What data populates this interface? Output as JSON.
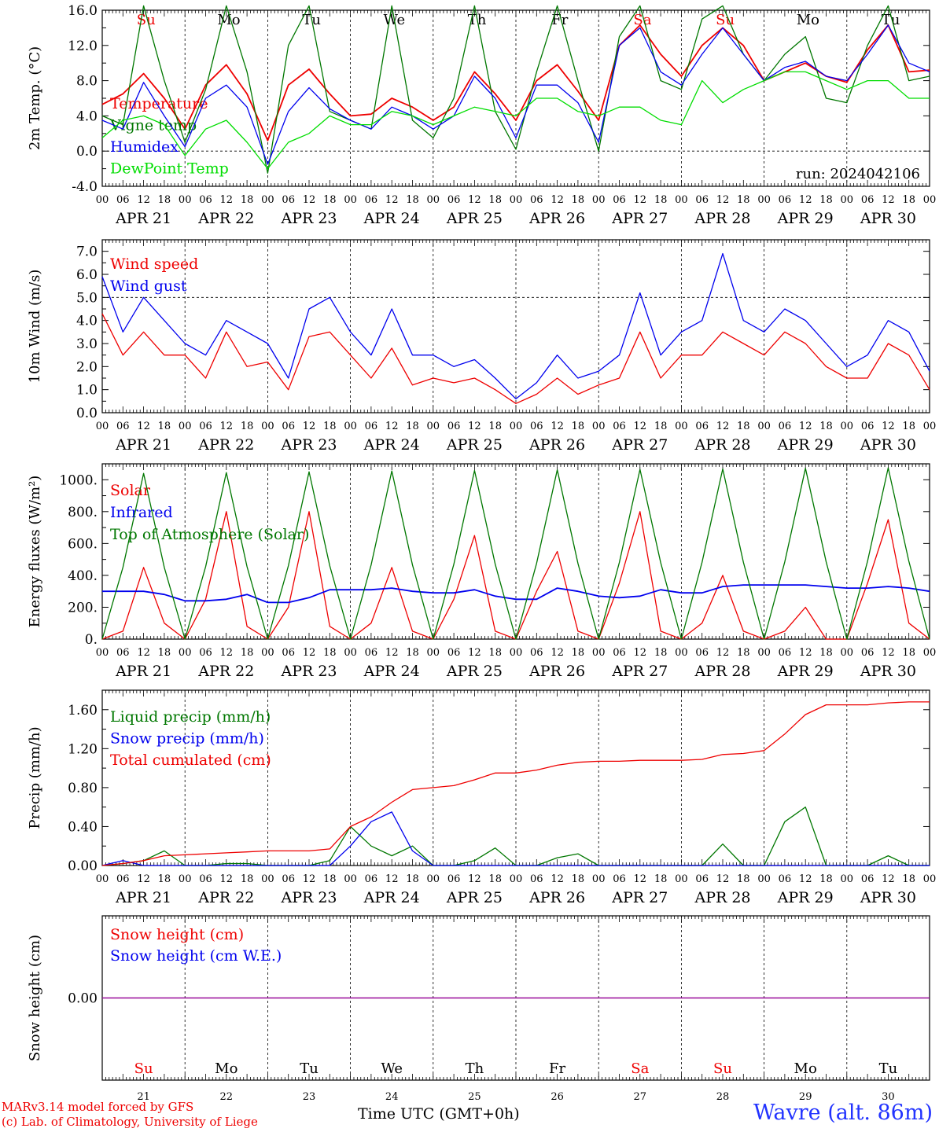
{
  "footer": {
    "model": "MARv3.14 model forced by GFS",
    "credit": "(c) Lab. of Climatology, University of Liege",
    "time_label": "Time UTC (GMT+0h)",
    "location": "Wavre (alt. 86m)"
  },
  "days": {
    "weekday_labels": [
      "Su",
      "Mo",
      "Tu",
      "We",
      "Th",
      "Fr",
      "Sa",
      "Su",
      "Mo",
      "Tu"
    ],
    "weekend_flags": [
      true,
      false,
      false,
      false,
      false,
      false,
      true,
      true,
      false,
      false
    ],
    "date_labels": [
      "APR 21",
      "APR 22",
      "APR 23",
      "APR 24",
      "APR 25",
      "APR 26",
      "APR 27",
      "APR 28",
      "APR 29",
      "APR 30"
    ],
    "day_numbers": [
      "21",
      "22",
      "23",
      "24",
      "25",
      "26",
      "27",
      "28",
      "29",
      "30"
    ],
    "hour_ticks": [
      "00",
      "06",
      "12",
      "18"
    ],
    "end_tick": "00"
  },
  "colors": {
    "red": "#ee0000",
    "blue": "#0000ee",
    "green": "#007700",
    "lightgreen": "#00dd00",
    "purple": "#8800aa"
  },
  "chart_data": [
    {
      "type": "line",
      "ylabel": "2m Temp. (°C)",
      "ylim": [
        -4,
        16
      ],
      "yticks": [
        "-4.0",
        "0.0",
        "4.0",
        "8.0",
        "12.0",
        "16.0"
      ],
      "annotation": "run: 2024042106",
      "x_hours_from": "APR 21 00",
      "x_step_hours": 6,
      "series": [
        {
          "name": "Temperature",
          "color": "red",
          "values": [
            5.3,
            6.5,
            8.8,
            6.0,
            2.5,
            7.5,
            9.8,
            6.5,
            1.2,
            7.5,
            9.3,
            6.5,
            4.0,
            4.2,
            6.0,
            5.0,
            3.5,
            5.0,
            9.0,
            6.5,
            3.5,
            8.0,
            9.8,
            6.8,
            3.5,
            12.0,
            14.3,
            11.0,
            8.5,
            12.0,
            14.0,
            12.0,
            8.0,
            9.0,
            10.0,
            8.5,
            7.8,
            11.5,
            14.3,
            9.0,
            9.2
          ]
        },
        {
          "name": "Vigne temp",
          "color": "green",
          "values": [
            4.0,
            3.0,
            16.5,
            8.0,
            1.0,
            7.0,
            16.5,
            9.0,
            -2.5,
            12.0,
            16.5,
            4.5,
            3.5,
            2.5,
            16.5,
            3.5,
            1.5,
            6.0,
            16.5,
            4.5,
            0.2,
            9.0,
            16.5,
            8.0,
            0.0,
            13.0,
            16.5,
            8.0,
            7.0,
            15.0,
            16.5,
            11.0,
            8.0,
            11.0,
            13.0,
            6.0,
            5.5,
            12.0,
            16.5,
            8.0,
            8.5
          ]
        },
        {
          "name": "Humidex",
          "color": "blue",
          "values": [
            3.5,
            2.5,
            7.8,
            4.0,
            0.5,
            6.0,
            7.5,
            5.0,
            -1.5,
            4.5,
            7.2,
            4.8,
            3.5,
            2.5,
            5.0,
            4.0,
            2.5,
            4.0,
            8.5,
            6.0,
            1.5,
            7.5,
            7.5,
            5.5,
            1.0,
            12.0,
            14.0,
            9.0,
            7.5,
            11.0,
            14.0,
            11.0,
            8.0,
            9.5,
            10.2,
            8.5,
            8.0,
            11.0,
            14.3,
            10.0,
            9.0
          ]
        },
        {
          "name": "DewPoint Temp",
          "color": "lightgreen",
          "values": [
            1.5,
            3.5,
            4.0,
            3.0,
            -0.5,
            2.5,
            3.5,
            1.0,
            -2.0,
            1.0,
            2.0,
            4.0,
            3.0,
            3.0,
            4.5,
            4.0,
            3.0,
            4.0,
            5.0,
            4.5,
            4.0,
            6.0,
            6.0,
            4.5,
            4.0,
            5.0,
            5.0,
            3.5,
            3.0,
            8.0,
            5.5,
            7.0,
            8.0,
            9.0,
            9.0,
            8.0,
            7.0,
            8.0,
            8.0,
            6.0,
            6.0
          ]
        }
      ]
    },
    {
      "type": "line",
      "ylabel": "10m Wind (m/s)",
      "ylim": [
        0,
        7.5
      ],
      "yticks": [
        "0.0",
        "1.0",
        "2.0",
        "3.0",
        "4.0",
        "5.0",
        "6.0",
        "7.0"
      ],
      "x_hours_from": "APR 21 00",
      "x_step_hours": 6,
      "series": [
        {
          "name": "Wind speed",
          "color": "red",
          "values": [
            4.3,
            2.5,
            3.5,
            2.5,
            2.5,
            1.5,
            3.5,
            2.0,
            2.2,
            1.0,
            3.3,
            3.5,
            2.5,
            1.5,
            2.8,
            1.2,
            1.5,
            1.3,
            1.5,
            1.0,
            0.4,
            0.8,
            1.5,
            0.8,
            1.2,
            1.5,
            3.5,
            1.5,
            2.5,
            2.5,
            3.5,
            3.0,
            2.5,
            3.5,
            3.0,
            2.0,
            1.5,
            1.5,
            3.0,
            2.5,
            1.0
          ]
        },
        {
          "name": "Wind gust",
          "color": "blue",
          "values": [
            5.9,
            3.5,
            5.0,
            4.0,
            3.0,
            2.5,
            4.0,
            3.5,
            3.0,
            1.5,
            4.5,
            5.0,
            3.5,
            2.5,
            4.5,
            2.5,
            2.5,
            2.0,
            2.3,
            1.5,
            0.6,
            1.3,
            2.5,
            1.5,
            1.8,
            2.5,
            5.2,
            2.5,
            3.5,
            4.0,
            6.9,
            4.0,
            3.5,
            4.5,
            4.0,
            3.0,
            2.0,
            2.5,
            4.0,
            3.5,
            1.8
          ]
        }
      ]
    },
    {
      "type": "line",
      "ylabel": "Energy fluxes (W/m²)",
      "ylim": [
        0,
        1100
      ],
      "yticks": [
        "0.",
        "200.",
        "400.",
        "600.",
        "800.",
        "1000."
      ],
      "x_hours_from": "APR 21 00",
      "x_step_hours": 6,
      "series": [
        {
          "name": "Solar",
          "color": "red",
          "values": [
            0,
            50,
            450,
            100,
            0,
            250,
            800,
            80,
            0,
            200,
            800,
            80,
            0,
            100,
            450,
            50,
            0,
            250,
            650,
            50,
            0,
            300,
            550,
            50,
            0,
            350,
            800,
            50,
            0,
            100,
            400,
            50,
            0,
            50,
            200,
            0,
            0,
            350,
            750,
            100,
            0
          ]
        },
        {
          "name": "Infrared",
          "color": "blue",
          "values": [
            300,
            300,
            300,
            280,
            240,
            240,
            250,
            280,
            230,
            230,
            260,
            310,
            310,
            310,
            320,
            300,
            290,
            290,
            310,
            270,
            250,
            250,
            320,
            300,
            270,
            260,
            270,
            310,
            290,
            290,
            330,
            340,
            340,
            340,
            340,
            330,
            320,
            320,
            330,
            320,
            300
          ]
        },
        {
          "name": "Top of Atmosphere (Solar)",
          "color": "green",
          "values": [
            0,
            450,
            1040,
            450,
            0,
            455,
            1045,
            455,
            0,
            460,
            1050,
            460,
            0,
            465,
            1055,
            465,
            0,
            470,
            1058,
            470,
            0,
            475,
            1062,
            475,
            0,
            480,
            1065,
            480,
            0,
            482,
            1068,
            482,
            0,
            485,
            1072,
            485,
            0,
            488,
            1075,
            488,
            0
          ]
        }
      ]
    },
    {
      "type": "line",
      "ylabel": "Precip (mm/h)",
      "ylim": [
        0,
        1.8
      ],
      "yticks": [
        "0.00",
        "0.40",
        "0.80",
        "1.20",
        "1.60"
      ],
      "x_hours_from": "APR 21 00",
      "x_step_hours": 6,
      "series": [
        {
          "name": "Liquid precip (mm/h)",
          "color": "green",
          "values": [
            0,
            0.02,
            0.05,
            0.15,
            0,
            0,
            0.02,
            0.02,
            0,
            0,
            0,
            0.05,
            0.4,
            0.2,
            0.1,
            0.2,
            0,
            0,
            0.05,
            0.18,
            0,
            0,
            0.08,
            0.12,
            0,
            0,
            0,
            0,
            0,
            0,
            0.22,
            0,
            0,
            0.45,
            0.6,
            0,
            0,
            0,
            0.1,
            0,
            0
          ]
        },
        {
          "name": "Snow precip (mm/h)",
          "color": "blue",
          "values": [
            0,
            0.05,
            0,
            0,
            0,
            0,
            0,
            0,
            0,
            0,
            0,
            0,
            0.2,
            0.45,
            0.55,
            0.15,
            0,
            0,
            0,
            0,
            0,
            0,
            0,
            0,
            0,
            0,
            0,
            0,
            0,
            0,
            0,
            0,
            0,
            0,
            0,
            0,
            0,
            0,
            0,
            0,
            0
          ]
        },
        {
          "name": "Total cumulated (cm)",
          "color": "red",
          "values": [
            0,
            0.02,
            0.05,
            0.1,
            0.11,
            0.12,
            0.13,
            0.14,
            0.15,
            0.15,
            0.15,
            0.17,
            0.4,
            0.5,
            0.65,
            0.78,
            0.8,
            0.82,
            0.88,
            0.95,
            0.95,
            0.98,
            1.03,
            1.06,
            1.07,
            1.07,
            1.08,
            1.08,
            1.08,
            1.09,
            1.14,
            1.15,
            1.18,
            1.35,
            1.55,
            1.65,
            1.65,
            1.65,
            1.67,
            1.68,
            1.68
          ]
        }
      ]
    },
    {
      "type": "line",
      "ylabel": "Snow height (cm)",
      "ylim": [
        -1,
        1
      ],
      "yticks": [
        "0.00"
      ],
      "x_hours_from": "APR 21 00",
      "x_step_hours": 6,
      "series": [
        {
          "name": "Snow height (cm)",
          "color": "red",
          "values": [
            0,
            0,
            0,
            0,
            0,
            0,
            0,
            0,
            0,
            0,
            0,
            0,
            0,
            0,
            0,
            0,
            0,
            0,
            0,
            0,
            0,
            0,
            0,
            0,
            0,
            0,
            0,
            0,
            0,
            0,
            0,
            0,
            0,
            0,
            0,
            0,
            0,
            0,
            0,
            0,
            0
          ]
        },
        {
          "name": "Snow height (cm W.E.)",
          "color": "blue",
          "values": [
            0,
            0,
            0,
            0,
            0,
            0,
            0,
            0,
            0,
            0,
            0,
            0,
            0,
            0,
            0,
            0,
            0,
            0,
            0,
            0,
            0,
            0,
            0,
            0,
            0,
            0,
            0,
            0,
            0,
            0,
            0,
            0,
            0,
            0,
            0,
            0,
            0,
            0,
            0,
            0,
            0
          ]
        }
      ]
    }
  ]
}
